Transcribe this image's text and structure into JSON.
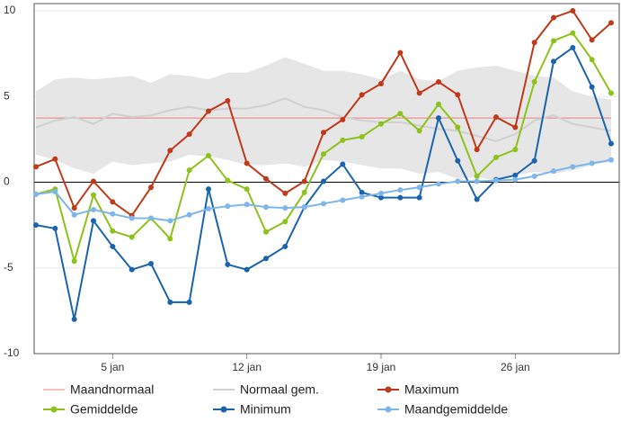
{
  "chart_data": {
    "type": "line",
    "x": [
      1,
      2,
      3,
      4,
      5,
      6,
      7,
      8,
      9,
      10,
      11,
      12,
      13,
      14,
      15,
      16,
      17,
      18,
      19,
      20,
      21,
      22,
      23,
      24,
      25,
      26,
      27,
      28,
      29,
      30,
      31
    ],
    "xlim": [
      1,
      31
    ],
    "xticks": [
      {
        "value": 5,
        "label": "5 jan"
      },
      {
        "value": 12,
        "label": "12 jan"
      },
      {
        "value": 19,
        "label": "19 jan"
      },
      {
        "value": 26,
        "label": "26 jan"
      }
    ],
    "ylim": [
      -10,
      10
    ],
    "yticks": [
      10,
      5,
      0,
      -5,
      -10
    ],
    "grid": true,
    "band": {
      "color": "#e6e6e6",
      "upper": [
        5.3,
        6.0,
        6.1,
        6.0,
        6.1,
        6.2,
        5.8,
        6.3,
        6.2,
        6.0,
        6.4,
        6.4,
        6.8,
        7.3,
        6.9,
        6.5,
        6.5,
        6.3,
        6.0,
        6.5,
        6.0,
        5.9,
        6.5,
        6.7,
        6.8,
        6.5,
        6.2,
        6.1,
        5.3,
        5.0,
        4.8
      ],
      "lower": [
        1.6,
        1.3,
        0.8,
        0.5,
        1.2,
        1.0,
        1.1,
        1.2,
        1.6,
        1.5,
        1.3,
        1.0,
        1.0,
        1.1,
        0.9,
        1.3,
        1.2,
        1.0,
        0.8,
        0.8,
        0.5,
        0.6,
        0.2,
        0.3,
        0.1,
        0.4,
        0.6,
        0.5,
        0.7,
        1.0,
        1.2
      ]
    },
    "series": [
      {
        "name": "Maandnormaal",
        "color": "#e88080",
        "markers": false,
        "width": 1,
        "values": [
          3.75,
          3.75,
          3.75,
          3.75,
          3.75,
          3.75,
          3.75,
          3.75,
          3.75,
          3.75,
          3.75,
          3.75,
          3.75,
          3.75,
          3.75,
          3.75,
          3.75,
          3.75,
          3.75,
          3.75,
          3.75,
          3.75,
          3.75,
          3.75,
          3.75,
          3.75,
          3.75,
          3.75,
          3.75,
          3.75,
          3.75
        ]
      },
      {
        "name": "Normaal gem.",
        "color": "#d0d0d0",
        "markers": false,
        "width": 2,
        "values": [
          3.2,
          3.6,
          3.8,
          3.4,
          4.0,
          3.8,
          3.9,
          4.2,
          4.4,
          4.2,
          4.3,
          4.3,
          4.5,
          4.9,
          4.4,
          4.2,
          3.8,
          3.6,
          3.5,
          3.5,
          3.3,
          3.1,
          3.0,
          2.7,
          2.4,
          2.8,
          3.6,
          3.9,
          3.4,
          3.2,
          3.0
        ]
      },
      {
        "name": "Maximum",
        "color": "#c0391b",
        "markers": true,
        "width": 2,
        "values": [
          0.9,
          1.35,
          -1.5,
          0.05,
          -1.15,
          -1.95,
          -0.3,
          1.85,
          2.8,
          4.15,
          4.75,
          1.1,
          0.2,
          -0.65,
          0.05,
          2.9,
          3.65,
          5.1,
          5.75,
          7.55,
          5.2,
          5.85,
          5.1,
          1.9,
          3.8,
          3.2,
          8.15,
          9.6,
          10,
          8.3,
          9.3
        ]
      },
      {
        "name": "Gemiddelde",
        "color": "#8cc21a",
        "markers": true,
        "width": 2,
        "values": [
          -0.7,
          -0.4,
          -4.6,
          -0.75,
          -2.85,
          -3.2,
          -2.1,
          -3.3,
          0.7,
          1.55,
          0.1,
          -0.4,
          -2.9,
          -2.3,
          -0.6,
          1.65,
          2.45,
          2.65,
          3.4,
          4.0,
          3.0,
          4.55,
          3.2,
          0.35,
          1.45,
          1.9,
          5.85,
          8.25,
          8.7,
          7.15,
          5.2
        ]
      },
      {
        "name": "Minimum",
        "color": "#1a64ad",
        "markers": true,
        "width": 2,
        "values": [
          -2.5,
          -2.7,
          -8.0,
          -2.25,
          -3.75,
          -5.1,
          -4.75,
          -7.0,
          -7.0,
          -0.4,
          -4.8,
          -5.1,
          -4.45,
          -3.75,
          -1.45,
          0.05,
          1.05,
          -0.6,
          -0.9,
          -0.9,
          -0.9,
          3.75,
          1.25,
          -1.0,
          0.15,
          0.4,
          1.25,
          7.05,
          7.85,
          5.55,
          2.25
        ]
      },
      {
        "name": "Maandgemiddelde",
        "color": "#7fb6ea",
        "markers": true,
        "width": 2,
        "values": [
          -0.7,
          -0.55,
          -1.9,
          -1.6,
          -1.85,
          -2.1,
          -2.1,
          -2.25,
          -1.9,
          -1.55,
          -1.4,
          -1.3,
          -1.45,
          -1.5,
          -1.45,
          -1.25,
          -1.05,
          -0.85,
          -0.65,
          -0.45,
          -0.3,
          -0.1,
          0.05,
          0.05,
          0.1,
          0.15,
          0.35,
          0.65,
          0.9,
          1.1,
          1.3
        ]
      }
    ]
  }
}
